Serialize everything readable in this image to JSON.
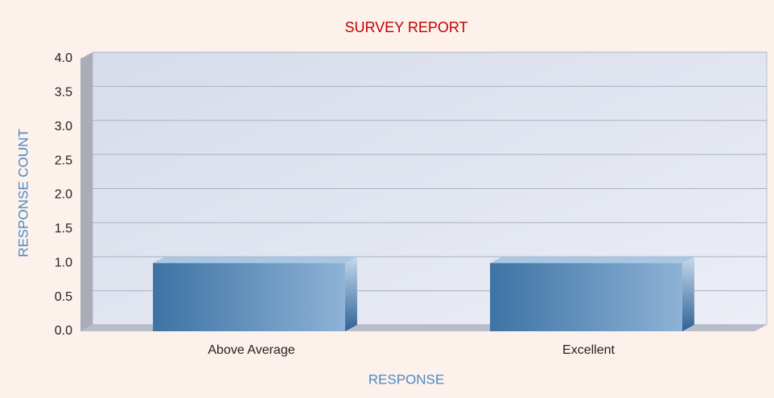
{
  "chart_data": {
    "type": "bar",
    "title": "SURVEY REPORT",
    "x_label": "RESPONSE",
    "y_label": "RESPONSE COUNT",
    "categories": [
      "Above Average",
      "Excellent"
    ],
    "values": [
      1,
      1
    ],
    "color": "#4a7fb0",
    "ylim": [
      0,
      4
    ],
    "yticks": [
      {
        "value": 0,
        "label": "0.0"
      },
      0.5,
      {
        "value": 1,
        "label": "1.0"
      },
      1.5,
      {
        "value": 2,
        "label": "2.0"
      },
      2.5,
      {
        "value": 3,
        "label": "3.0"
      },
      3.5,
      {
        "value": 4,
        "label": "4.0"
      }
    ],
    "grid": true
  }
}
